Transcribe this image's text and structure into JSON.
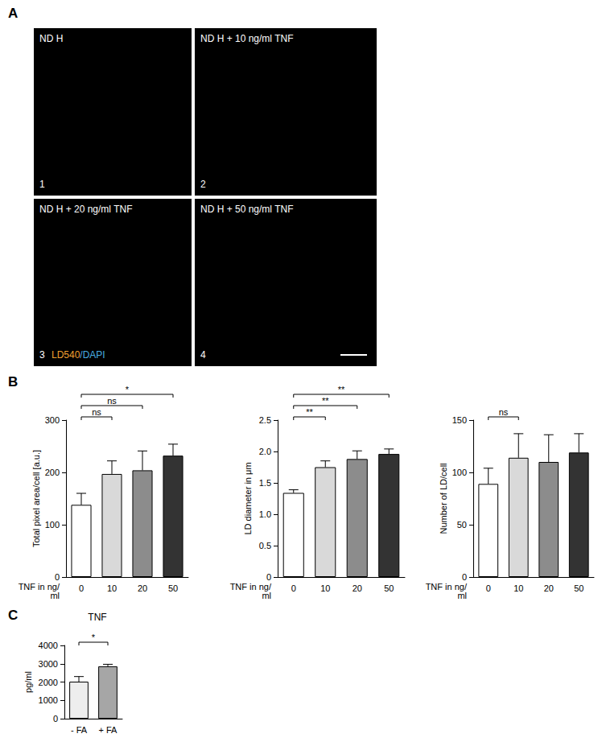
{
  "panel_labels": [
    "A",
    "B",
    "C"
  ],
  "micrographs": [
    {
      "label": "ND H",
      "number": "1"
    },
    {
      "label": "ND H + 10 ng/ml TNF",
      "number": "2"
    },
    {
      "label": "ND H + 20 ng/ml TNF",
      "number": "3"
    },
    {
      "label": "ND H + 50 ng/ml TNF",
      "number": "4"
    }
  ],
  "stain_label": [
    {
      "text": "LD540",
      "color": "#f0a030"
    },
    {
      "text": "/DAPI",
      "color": "#48aee0"
    }
  ],
  "chart_data": [
    {
      "type": "bar",
      "ylabel": "Total pixel area/cell [a.u.]",
      "xlabel": "TNF in ng/ml",
      "categories": [
        "0",
        "10",
        "20",
        "50"
      ],
      "values": [
        138,
        197,
        204,
        232
      ],
      "errors": [
        22,
        25,
        37,
        22
      ],
      "colors": [
        "#ffffff",
        "#d9d9d9",
        "#8c8c8c",
        "#333333"
      ],
      "ylim": [
        0,
        300
      ],
      "yticks": [
        0,
        100,
        200,
        300
      ],
      "grid": false,
      "comparisons": [
        {
          "from": "0",
          "to": "10",
          "label": "ns"
        },
        {
          "from": "0",
          "to": "20",
          "label": "ns"
        },
        {
          "from": "0",
          "to": "50",
          "label": "*"
        }
      ]
    },
    {
      "type": "bar",
      "ylabel": "LD diameter in μm",
      "xlabel": "TNF in ng/ml",
      "categories": [
        "0",
        "10",
        "20",
        "50"
      ],
      "values": [
        1.34,
        1.75,
        1.88,
        1.96
      ],
      "errors": [
        0.05,
        0.1,
        0.13,
        0.08
      ],
      "colors": [
        "#ffffff",
        "#d9d9d9",
        "#8c8c8c",
        "#333333"
      ],
      "ylim": [
        0,
        2.5
      ],
      "yticks": [
        0,
        0.5,
        {
          "value": 1,
          "label": "1.0"
        },
        1.5,
        {
          "value": 2,
          "label": "2.0"
        },
        2.5
      ],
      "grid": false,
      "comparisons": [
        {
          "from": "0",
          "to": "10",
          "label": "**"
        },
        {
          "from": "0",
          "to": "20",
          "label": "**"
        },
        {
          "from": "0",
          "to": "50",
          "label": "**"
        }
      ]
    },
    {
      "type": "bar",
      "ylabel": "Number of LD/cell",
      "xlabel": "TNF in ng/ml",
      "categories": [
        "0",
        "10",
        "20",
        "50"
      ],
      "values": [
        89,
        114,
        110,
        119
      ],
      "errors": [
        15,
        23,
        26,
        18
      ],
      "colors": [
        "#ffffff",
        "#d9d9d9",
        "#8c8c8c",
        "#333333"
      ],
      "ylim": [
        0,
        150
      ],
      "yticks": [
        0,
        50,
        100,
        150
      ],
      "grid": false,
      "comparisons": [
        {
          "from": "0",
          "to": "10",
          "label": "ns"
        }
      ]
    },
    {
      "type": "bar",
      "title": "TNF",
      "ylabel": "pg/ml",
      "categories": [
        "- FA",
        "+ FA"
      ],
      "values": [
        2020,
        2860
      ],
      "errors": [
        280,
        110
      ],
      "colors": [
        "#eeeeee",
        "#a6a6a6"
      ],
      "ylim": [
        0,
        4000
      ],
      "yticks": [
        0,
        1000,
        2000,
        3000,
        4000
      ],
      "grid": false,
      "comparisons": [
        {
          "from": "- FA",
          "to": "+ FA",
          "label": "*"
        }
      ]
    }
  ]
}
